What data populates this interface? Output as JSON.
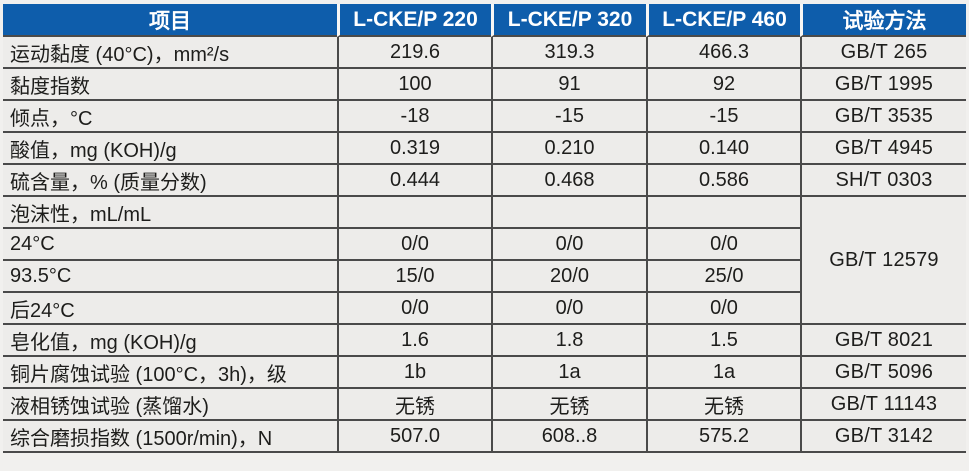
{
  "page": {
    "background_color": "#f1f0ee",
    "header_bg_color": "#0e5dab",
    "border_color": "#4a4a4a",
    "cell_bg_color": "#edecea"
  },
  "table": {
    "header": {
      "item": "项目",
      "col220": "L-CKE/P 220",
      "col320": "L-CKE/P 320",
      "col460": "L-CKE/P 460",
      "method": "试验方法"
    },
    "rows": [
      {
        "label": "运动黏度 (40°C)，mm²/s",
        "v220": "219.6",
        "v320": "319.3",
        "v460": "466.3",
        "method": "GB/T 265"
      },
      {
        "label": "黏度指数",
        "v220": "100",
        "v320": "91",
        "v460": "92",
        "method": "GB/T 1995"
      },
      {
        "label": "倾点，°C",
        "v220": "-18",
        "v320": "-15",
        "v460": "-15",
        "method": "GB/T 3535"
      },
      {
        "label": "酸值，mg (KOH)/g",
        "v220": "0.319",
        "v320": "0.210",
        "v460": "0.140",
        "method": "GB/T 4945"
      },
      {
        "label": "硫含量，% (质量分数)",
        "v220": "0.444",
        "v320": "0.468",
        "v460": "0.586",
        "method": "SH/T 0303"
      },
      {
        "label": "泡沫性，mL/mL",
        "v220": "",
        "v320": "",
        "v460": "",
        "method": "GB/T 12579"
      },
      {
        "label": "24°C",
        "v220": "0/0",
        "v320": "0/0",
        "v460": "0/0"
      },
      {
        "label": "93.5°C",
        "v220": "15/0",
        "v320": "20/0",
        "v460": "25/0"
      },
      {
        "label": "后24°C",
        "v220": "0/0",
        "v320": "0/0",
        "v460": "0/0"
      },
      {
        "label": "皂化值，mg (KOH)/g",
        "v220": "1.6",
        "v320": "1.8",
        "v460": "1.5",
        "method": "GB/T 8021"
      },
      {
        "label": "铜片腐蚀试验 (100°C，3h)，级",
        "v220": "1b",
        "v320": "1a",
        "v460": "1a",
        "method": "GB/T 5096"
      },
      {
        "label": "液相锈蚀试验 (蒸馏水)",
        "v220": "无锈",
        "v320": "无锈",
        "v460": "无锈",
        "method": "GB/T 11143"
      },
      {
        "label": "综合磨损指数 (1500r/min)，N",
        "v220": "507.0",
        "v320": "608..8",
        "v460": "575.2",
        "method": "GB/T 3142"
      }
    ]
  }
}
